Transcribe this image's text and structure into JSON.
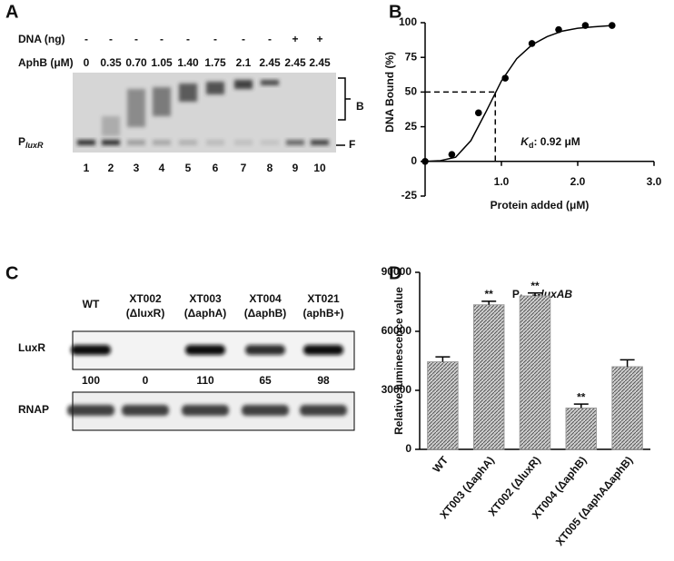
{
  "panel_a": {
    "letter": "A",
    "row_labels": [
      "DNA (ng)",
      "AphB (μM)"
    ],
    "dna": [
      "-",
      "-",
      "-",
      "-",
      "-",
      "-",
      "-",
      "-",
      "+",
      "+"
    ],
    "aphb": [
      "0",
      "0.35",
      "0.70",
      "1.05",
      "1.40",
      "1.75",
      "2.1",
      "2.45",
      "2.45",
      "2.45"
    ],
    "lanes": [
      "1",
      "2",
      "3",
      "4",
      "5",
      "6",
      "7",
      "8",
      "9",
      "10"
    ],
    "bound_label": "B",
    "free_label": "F",
    "probe_main": "P",
    "probe_sub": "luxR"
  },
  "panel_c": {
    "letter": "C",
    "strains": [
      {
        "name": "WT"
      },
      {
        "name": "XT002",
        "genotype": "(ΔluxR)"
      },
      {
        "name": "XT003",
        "genotype": "(ΔaphA)"
      },
      {
        "name": "XT004",
        "genotype": "(ΔaphB)"
      },
      {
        "name": "XT021",
        "genotype": "(aphB+)"
      }
    ],
    "rows": [
      "LuxR",
      "RNAP"
    ],
    "luxr_levels": [
      100,
      0,
      110,
      65,
      98
    ]
  },
  "chart_data": [
    {
      "type": "scatter",
      "panel": "B",
      "xlabel": "Protein added (μM)",
      "ylabel": "DNA Bound (%)",
      "x": [
        0,
        0.35,
        0.7,
        1.05,
        1.4,
        1.75,
        2.1,
        2.45
      ],
      "values": [
        0,
        5,
        35,
        60,
        85,
        95,
        98,
        98
      ],
      "fit": {
        "x": [
          0,
          0.2,
          0.4,
          0.6,
          0.8,
          1.0,
          1.2,
          1.4,
          1.6,
          1.8,
          2.0,
          2.2,
          2.45
        ],
        "values": [
          0,
          0.5,
          3,
          15,
          36,
          58,
          74,
          84,
          90,
          94,
          96,
          97,
          98
        ]
      },
      "kd": 0.92,
      "half": 50,
      "kd_symbol": "K",
      "kd_sub": "d",
      "kd_text": ": 0.92 μM",
      "xlim": [
        0,
        3
      ],
      "xticks": [
        {
          "value": 1,
          "label": "1.0"
        },
        {
          "value": 2,
          "label": "2.0"
        },
        {
          "value": 3,
          "label": "3.0"
        }
      ],
      "ylim": [
        -25,
        100
      ],
      "yticks": [
        -25,
        0,
        25,
        50,
        75,
        100
      ],
      "color": "#000000"
    },
    {
      "type": "bar",
      "panel": "D",
      "title_main": "P",
      "title_sub": "luxR",
      "title_rest": "-luxAB",
      "ylabel": "Relative luminescence value",
      "categories": [
        "WT",
        "XT003 (ΔaphA)",
        "XT002 (ΔluxR)",
        "XT004 (ΔaphB)",
        "XT005 (ΔaphAΔaphB)"
      ],
      "values": [
        44500,
        73500,
        78000,
        21000,
        42000
      ],
      "errors": [
        2500,
        1800,
        1500,
        2000,
        3500
      ],
      "significance": [
        null,
        "**",
        "**",
        "**",
        null
      ],
      "ylim": [
        0,
        90000
      ],
      "yticks": [
        0,
        30000,
        60000,
        90000
      ],
      "color": "#9a9a9a"
    }
  ]
}
